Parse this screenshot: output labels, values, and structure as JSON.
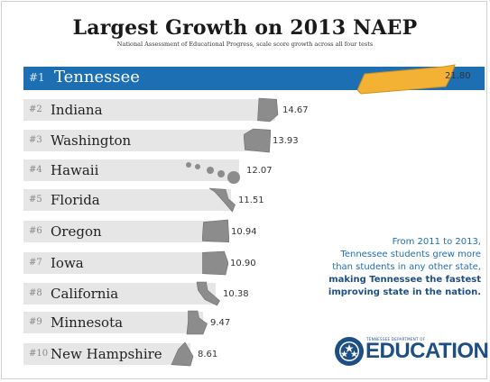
{
  "title": "Largest Growth on 2013 NAEP",
  "subtitle": "National Assessment of Educational Progress, scale score growth across all four tests",
  "colors": {
    "highlight": "#1d6fb3",
    "bar": "#e6e6e6",
    "shape": "#8c8c8c",
    "topShape": "#f3b233"
  },
  "chart_data": {
    "type": "bar",
    "title": "Largest Growth on 2013 NAEP",
    "subtitle": "National Assessment of Educational Progress, scale score growth across all four tests",
    "categories": [
      "Tennessee",
      "Indiana",
      "Washington",
      "Hawaii",
      "Florida",
      "Oregon",
      "Iowa",
      "California",
      "Minnesota",
      "New Hampshire"
    ],
    "ranks": [
      "#1",
      "#2",
      "#3",
      "#4",
      "#5",
      "#6",
      "#7",
      "#8",
      "#9",
      "#10"
    ],
    "values": [
      21.8,
      14.67,
      13.93,
      12.07,
      11.51,
      10.94,
      10.9,
      10.38,
      9.47,
      8.61
    ],
    "labels": [
      "21.80",
      "14.67",
      "13.93",
      "12.07",
      "11.51",
      "10.94",
      "10.90",
      "10.38",
      "9.47",
      "8.61"
    ],
    "orientation": "horizontal"
  },
  "note": {
    "line1": "From 2011 to 2013,",
    "line2": "Tennessee students grew more",
    "line3": "than students in any other state,",
    "line4": "making Tennessee the fastest",
    "line5": "improving state in the nation."
  },
  "logo": {
    "small": "TENNESSEE DEPARTMENT OF",
    "big": "EDUCATION",
    "icon": "tennessee-tri-star-icon"
  }
}
